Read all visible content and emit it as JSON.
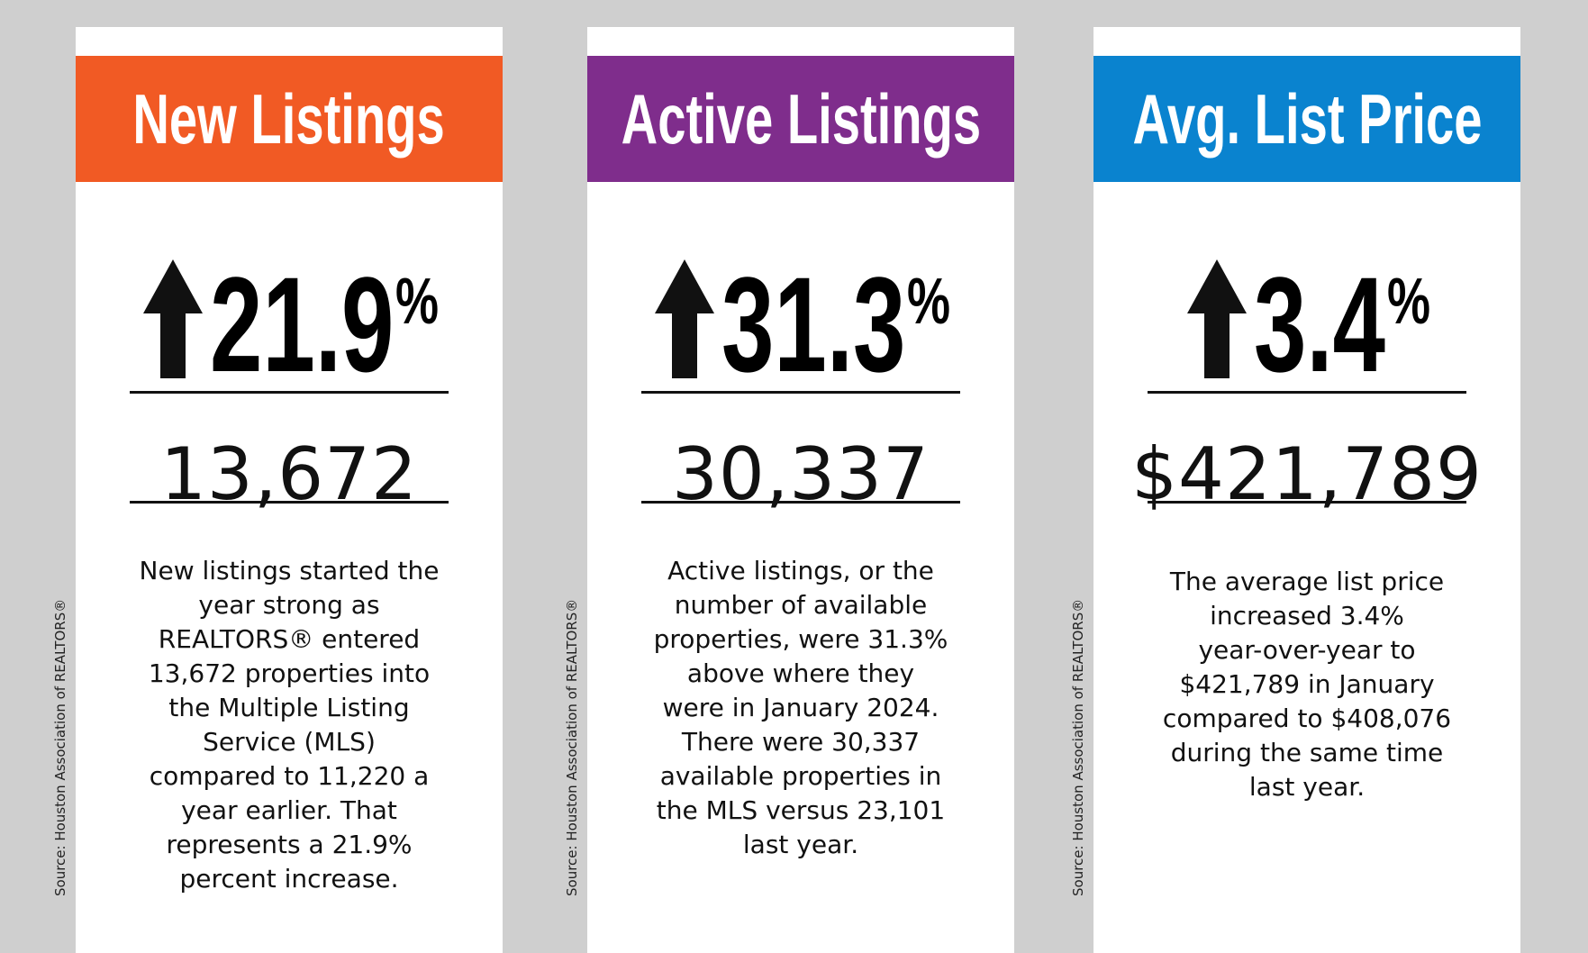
{
  "cards": [
    {
      "title": "New Listings",
      "change": "21.9",
      "change_unit": "%",
      "figure": "13,672",
      "description": [
        "New listings started the",
        "year strong as",
        "REALTORS® entered",
        "13,672 properties into",
        "the Multiple Listing",
        "Service (MLS)",
        "compared to 11,220 a",
        "year earlier. That",
        "represents a 21.9%",
        "percent increase."
      ],
      "source": "Source: Houston Association of REALTORS®"
    },
    {
      "title": "Active Listings",
      "change": "31.3",
      "change_unit": "%",
      "figure": "30,337",
      "description": [
        "Active listings, or the",
        "number of available",
        "properties, were 31.3%",
        "above where they",
        "were in January 2024.",
        "There were 30,337",
        "available properties in",
        "the MLS versus 23,101",
        "last year."
      ],
      "source": "Source: Houston Association of REALTORS®"
    },
    {
      "title": "Avg. List Price",
      "change": "3.4",
      "change_unit": "%",
      "figure": "$421,789",
      "description": [
        "The average list price",
        "increased 3.4%",
        "year-over-year to",
        "$421,789 in January",
        "compared to $408,076",
        "during the same time",
        "last year."
      ],
      "source": "Source: Houston Association of REALTORS®"
    }
  ]
}
